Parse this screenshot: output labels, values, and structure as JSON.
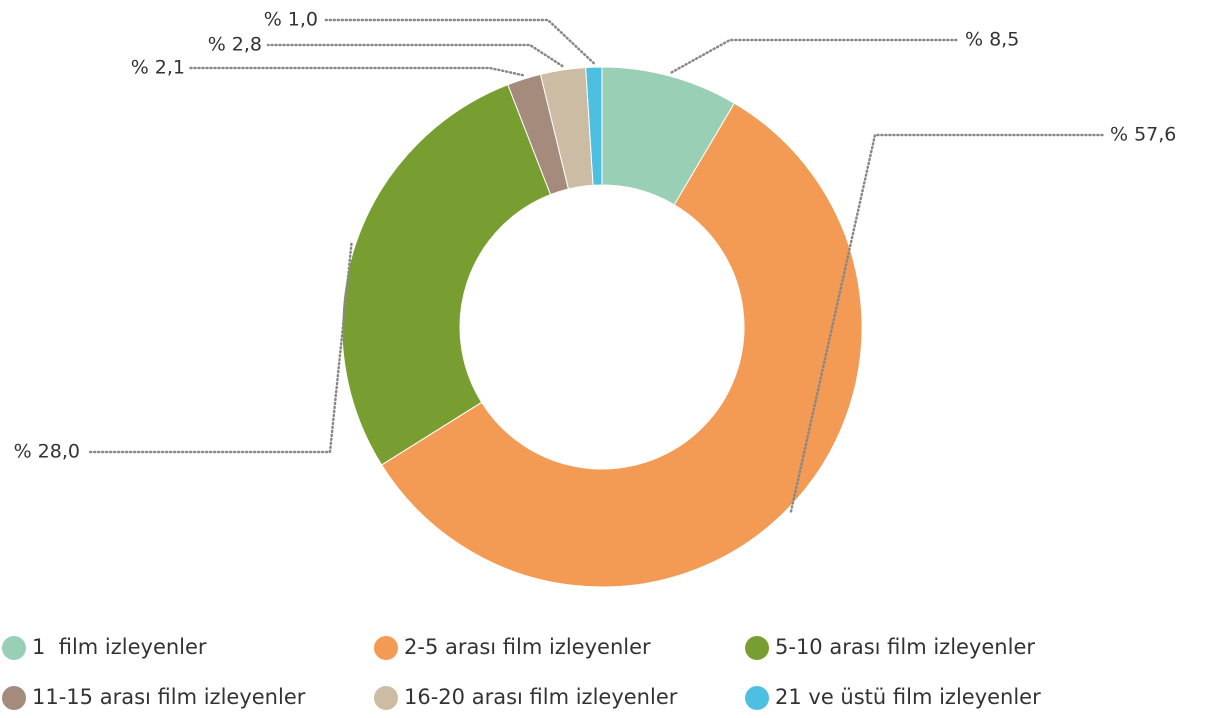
{
  "chart_data": {
    "type": "donut",
    "categories": [
      "1  film izleyenler",
      "2-5 arası film izleyenler",
      "5-10 arası film izleyenler",
      "11-15 arası film izleyenler",
      "16-20 arası film izleyenler",
      "21 ve üstü film izleyenler"
    ],
    "values": [
      8.5,
      57.6,
      28.0,
      2.1,
      2.8,
      1.0
    ],
    "value_labels": [
      "% 8,5",
      "% 57,6",
      "% 28,0",
      "% 2,1",
      "% 2,8",
      "% 1,0"
    ],
    "colors": [
      "#99cfb4",
      "#f39a55",
      "#789e31",
      "#a58b7b",
      "#cbbca3",
      "#4dbfe0"
    ],
    "legend": "bottom"
  }
}
